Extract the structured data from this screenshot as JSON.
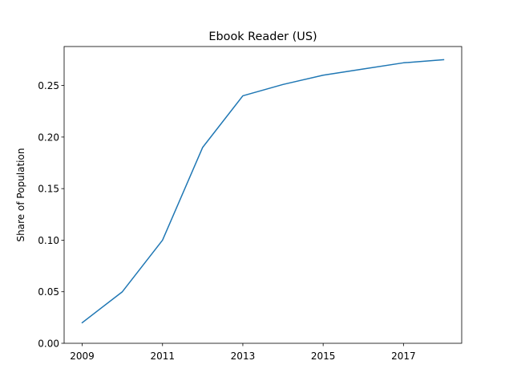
{
  "chart_data": {
    "type": "line",
    "title": "Ebook Reader (US)",
    "xlabel": "",
    "ylabel": "Share of Population",
    "x": [
      2009,
      2010,
      2011,
      2012,
      2013,
      2014,
      2015,
      2016,
      2017,
      2018
    ],
    "series": [
      {
        "values": [
          0.02,
          0.05,
          0.1,
          0.19,
          0.24,
          0.251,
          0.26,
          0.266,
          0.272,
          0.275
        ],
        "color": "#1f77b4"
      }
    ],
    "xticks": [
      2009,
      2011,
      2013,
      2015,
      2017
    ],
    "yticks": [
      0.0,
      0.05,
      0.1,
      0.15,
      0.2,
      0.25
    ],
    "ytick_labels": [
      "0.00",
      "0.05",
      "0.10",
      "0.15",
      "0.20",
      "0.25"
    ],
    "xlim": [
      2008.55,
      2018.45
    ],
    "ylim": [
      0.0,
      0.2878
    ],
    "grid": false,
    "legend": "none"
  }
}
